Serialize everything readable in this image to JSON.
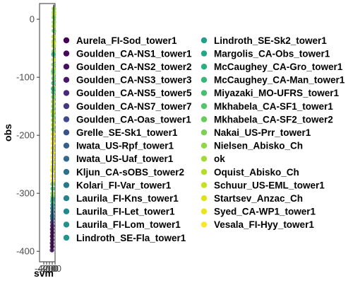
{
  "chart_data": {
    "type": "scatter",
    "xlabel": "svm",
    "ylabel": "obs",
    "y_ticks": [
      0,
      -100,
      -200,
      -300,
      -400
    ],
    "y_tick_labels": [
      "0",
      "-100",
      "-200",
      "-300",
      "-400"
    ],
    "x_tick_labels": [
      "-400",
      "-300",
      "-200",
      "-100",
      "0"
    ],
    "ylim": [
      -418,
      27
    ],
    "xlim": [
      -418,
      27
    ],
    "grid": false,
    "legend_position": "right",
    "series": [
      {
        "name": "Aurela_FI-Sod_tower1",
        "color": "#440154"
      },
      {
        "name": "Goulden_CA-NS1_tower1",
        "color": "#46075a"
      },
      {
        "name": "Goulden_CA-NS2_tower2",
        "color": "#470e61"
      },
      {
        "name": "Goulden_CA-NS3_tower3",
        "color": "#481769"
      },
      {
        "name": "Goulden_CA-NS5_tower5",
        "color": "#472a7a"
      },
      {
        "name": "Goulden_CA-NS7_tower7",
        "color": "#443983"
      },
      {
        "name": "Goulden_CA-Oas_tower1",
        "color": "#3f4889"
      },
      {
        "name": "Grelle_SE-Sk1_tower1",
        "color": "#3b528b"
      },
      {
        "name": "Iwata_US-Rpf_tower1",
        "color": "#355f8d"
      },
      {
        "name": "Iwata_US-Uaf_tower1",
        "color": "#31688e"
      },
      {
        "name": "Kljun_CA-sOBS_tower2",
        "color": "#2d718e"
      },
      {
        "name": "Kolari_FI-Var_tower1",
        "color": "#2a788e"
      },
      {
        "name": "Laurila_FI-Kns_tower1",
        "color": "#26828e"
      },
      {
        "name": "Laurila_FI-Let_tower1",
        "color": "#23898e"
      },
      {
        "name": "Laurila_FI-Lom_tower1",
        "color": "#21918c"
      },
      {
        "name": "Lindroth_SE-Fla_tower1",
        "color": "#1f988b"
      },
      {
        "name": "Lindroth_SE-Sk2_tower1",
        "color": "#1fa088"
      },
      {
        "name": "Margolis_CA-Obs_tower1",
        "color": "#22a884"
      },
      {
        "name": "McCaughey_CA-Gro_tower1",
        "color": "#2ab07f"
      },
      {
        "name": "McCaughey_CA-Man_tower1",
        "color": "#35b779"
      },
      {
        "name": "Miyazaki_MO-UFRS_tower1",
        "color": "#44bf70"
      },
      {
        "name": "Mkhabela_CA-SF1_tower1",
        "color": "#54c568"
      },
      {
        "name": "Mkhabela_CA-SF2_tower2",
        "color": "#67cc5c"
      },
      {
        "name": "Nakai_US-Prr_tower1",
        "color": "#7ad151"
      },
      {
        "name": "Nielsen_Abisko_Ch",
        "color": "#8fd744"
      },
      {
        "name": "ok",
        "color": "#a2da37"
      },
      {
        "name": "Oquist_Abisko_Ch",
        "color": "#b5de2b"
      },
      {
        "name": "Schuur_US-EML_tower1",
        "color": "#c8e020"
      },
      {
        "name": "Startsev_Anzac_Ch",
        "color": "#dde318"
      },
      {
        "name": "Syed_CA-WP1_tower1",
        "color": "#eae51a"
      },
      {
        "name": "Vesala_FI-Hyy_tower1",
        "color": "#fde725"
      }
    ],
    "points": [
      {
        "x": -4,
        "y": 18,
        "s": 24
      },
      {
        "x": -6,
        "y": 12,
        "s": 25
      },
      {
        "x": -3,
        "y": 8,
        "s": 26
      },
      {
        "x": -8,
        "y": 3,
        "s": 23
      },
      {
        "x": -5,
        "y": -5,
        "s": 24
      },
      {
        "x": -10,
        "y": -12,
        "s": 25
      },
      {
        "x": -7,
        "y": -20,
        "s": 22
      },
      {
        "x": -12,
        "y": -30,
        "s": 26
      },
      {
        "x": -9,
        "y": -38,
        "s": 23
      },
      {
        "x": -14,
        "y": -46,
        "s": 25
      },
      {
        "x": -11,
        "y": -55,
        "s": 24
      },
      {
        "x": -16,
        "y": -62,
        "s": 22
      },
      {
        "x": -13,
        "y": -70,
        "s": 26
      },
      {
        "x": -18,
        "y": -78,
        "s": 23
      },
      {
        "x": -15,
        "y": -86,
        "s": 25
      },
      {
        "x": -20,
        "y": -94,
        "s": 24
      },
      {
        "x": -17,
        "y": -102,
        "s": 22
      },
      {
        "x": -22,
        "y": -110,
        "s": 20
      },
      {
        "x": -19,
        "y": -118,
        "s": 24
      },
      {
        "x": -24,
        "y": -126,
        "s": 21
      },
      {
        "x": -21,
        "y": -134,
        "s": 23
      },
      {
        "x": -26,
        "y": -142,
        "s": 25
      },
      {
        "x": -23,
        "y": -150,
        "s": 24
      },
      {
        "x": -28,
        "y": -158,
        "s": 22
      },
      {
        "x": -25,
        "y": -166,
        "s": 23
      },
      {
        "x": -30,
        "y": -174,
        "s": 25
      },
      {
        "x": -27,
        "y": -182,
        "s": 26
      },
      {
        "x": -32,
        "y": -190,
        "s": 24
      },
      {
        "x": -29,
        "y": -198,
        "s": 28
      },
      {
        "x": -34,
        "y": -206,
        "s": 29
      },
      {
        "x": -31,
        "y": -214,
        "s": 30
      },
      {
        "x": -36,
        "y": -222,
        "s": 28
      },
      {
        "x": -33,
        "y": -230,
        "s": 29
      },
      {
        "x": -38,
        "y": -238,
        "s": 30
      },
      {
        "x": -35,
        "y": -246,
        "s": 28
      },
      {
        "x": -40,
        "y": -254,
        "s": 29
      },
      {
        "x": -37,
        "y": -262,
        "s": 30
      },
      {
        "x": -42,
        "y": -270,
        "s": 29
      },
      {
        "x": -39,
        "y": -278,
        "s": 30
      },
      {
        "x": -44,
        "y": -284,
        "s": 23
      },
      {
        "x": -41,
        "y": -292,
        "s": 20
      },
      {
        "x": -46,
        "y": -300,
        "s": 24
      },
      {
        "x": -43,
        "y": -306,
        "s": 22
      },
      {
        "x": -48,
        "y": -314,
        "s": 19
      },
      {
        "x": -45,
        "y": -320,
        "s": 14
      },
      {
        "x": -50,
        "y": -326,
        "s": 12
      },
      {
        "x": -47,
        "y": -332,
        "s": 10
      },
      {
        "x": -52,
        "y": -338,
        "s": 8
      },
      {
        "x": -49,
        "y": -344,
        "s": 6
      },
      {
        "x": -54,
        "y": -350,
        "s": 5
      },
      {
        "x": -51,
        "y": -356,
        "s": 3
      },
      {
        "x": -56,
        "y": -362,
        "s": 2
      },
      {
        "x": -53,
        "y": -368,
        "s": 1
      },
      {
        "x": -58,
        "y": -374,
        "s": 0
      },
      {
        "x": -55,
        "y": -380,
        "s": 2
      },
      {
        "x": -60,
        "y": -386,
        "s": 1
      },
      {
        "x": -57,
        "y": -392,
        "s": 0
      },
      {
        "x": -62,
        "y": -398,
        "s": 3
      },
      {
        "x": -20,
        "y": -60,
        "s": 18
      },
      {
        "x": -30,
        "y": -120,
        "s": 19
      },
      {
        "x": -12,
        "y": -40,
        "s": 27
      },
      {
        "x": -25,
        "y": -90,
        "s": 21
      },
      {
        "x": -35,
        "y": -160,
        "s": 26
      },
      {
        "x": -40,
        "y": -310,
        "s": 15
      },
      {
        "x": -55,
        "y": -340,
        "s": 11
      },
      {
        "x": -45,
        "y": -260,
        "s": 27
      }
    ]
  }
}
